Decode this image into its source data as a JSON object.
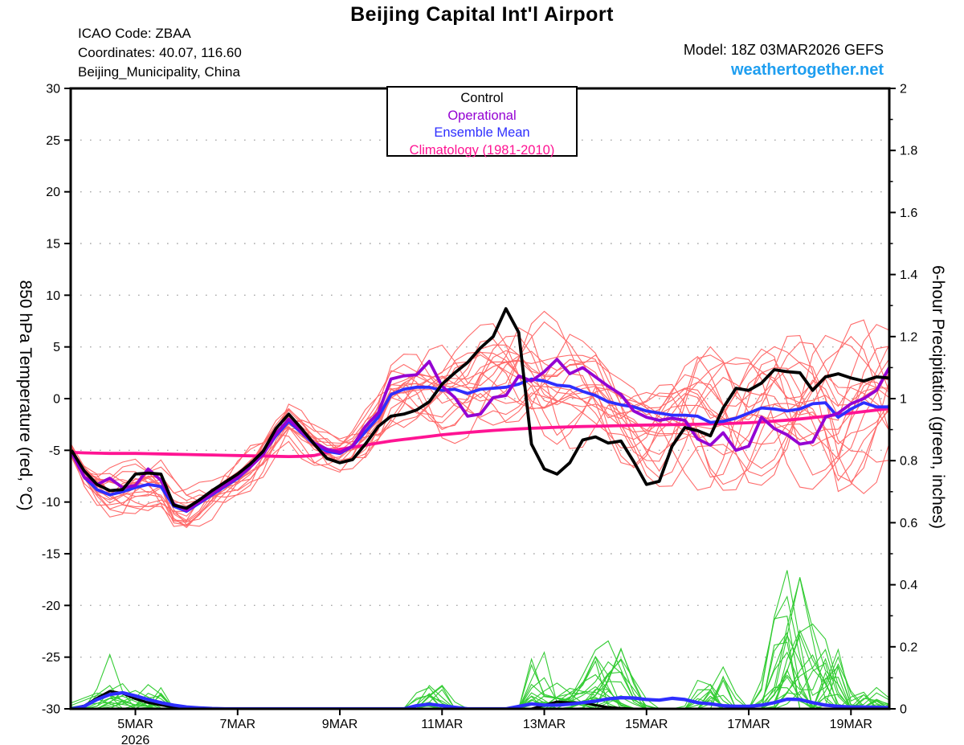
{
  "header": {
    "title": "Beijing Capital Int'l Airport",
    "station": {
      "icao": "ICAO Code: ZBAA",
      "coordinates": "Coordinates: 40.07, 116.60",
      "location": "Beijing_Municipality, China"
    },
    "model": "Model: 18Z 03MAR2026 GEFS",
    "website": "weathertogether.net",
    "website_color": "#1E9EF0"
  },
  "legend": {
    "entries": [
      {
        "label": "Control",
        "color": "#000000"
      },
      {
        "label": "Operational",
        "color": "#9400D3"
      },
      {
        "label": "Ensemble Mean",
        "color": "#2E2EFF"
      },
      {
        "label": "Climatology (1981-2010)",
        "color": "#FF1493"
      }
    ]
  },
  "chart_data": {
    "type": "line",
    "title": "Beijing Capital Int'l Airport",
    "x_axis": {
      "start_day": 3.75,
      "step_days": 0.25,
      "n_points": 65,
      "range_days": [
        3.75,
        19.75
      ],
      "tick_days": [
        5,
        7,
        9,
        11,
        13,
        15,
        17,
        19
      ],
      "tick_labels": [
        "5MAR",
        "7MAR",
        "9MAR",
        "11MAR",
        "13MAR",
        "15MAR",
        "17MAR",
        "19MAR"
      ],
      "year_label": "2026"
    },
    "y_left": {
      "title": "850 hPa Temperature (red, °C)",
      "min": -30,
      "max": 30,
      "ticks": [
        30,
        25,
        20,
        15,
        10,
        5,
        0,
        -5,
        -10,
        -15,
        -20,
        -25,
        -30
      ],
      "grid": "dotted at every 5 from -25 to 25"
    },
    "y_right": {
      "title": "6-hour Precipitation (green, inches)",
      "min": 0,
      "max": 2,
      "ticks": [
        2,
        1.8,
        1.6,
        1.4,
        1.2,
        1,
        0.8,
        0.6,
        0.4,
        0.2,
        0
      ],
      "tick_labels": [
        "2",
        "1.8",
        "1.6",
        "1.4",
        "1.2",
        "1",
        "0.8",
        "0.6",
        "0.4",
        "0.2",
        "0"
      ],
      "minor_tick_step": 0.1
    },
    "series": {
      "control_temp": {
        "name": "Control",
        "color": "#000000",
        "axis": "left",
        "values": [
          -5.0,
          -7.0,
          -8.3,
          -8.9,
          -8.8,
          -7.3,
          -7.2,
          -7.3,
          -10.3,
          -10.6,
          -9.8,
          -8.9,
          -8.1,
          -7.3,
          -6.3,
          -5.1,
          -2.9,
          -1.5,
          -2.9,
          -4.4,
          -5.8,
          -6.2,
          -5.9,
          -4.4,
          -2.7,
          -1.7,
          -1.5,
          -1.1,
          -0.3,
          1.4,
          2.5,
          3.5,
          4.9,
          6.0,
          8.7,
          6.4,
          -4.4,
          -6.8,
          -7.3,
          -6.2,
          -4.0,
          -3.7,
          -4.3,
          -4.1,
          -6.1,
          -8.3,
          -8.0,
          -4.6,
          -2.8,
          -3.1,
          -3.6,
          -0.9,
          1.0,
          0.8,
          1.5,
          2.8,
          2.6,
          2.5,
          0.8,
          2.1,
          2.4,
          2.0,
          1.7,
          2.1,
          2.0
        ]
      },
      "operational_temp": {
        "name": "Operational",
        "color": "#9400D3",
        "axis": "left",
        "values": [
          -5.2,
          -7.6,
          -8.3,
          -7.7,
          -8.6,
          -8.4,
          -6.8,
          -7.9,
          -10.2,
          -10.8,
          -10.0,
          -9.2,
          -8.4,
          -7.6,
          -6.6,
          -5.4,
          -3.4,
          -2.0,
          -3.2,
          -4.3,
          -4.9,
          -5.2,
          -4.6,
          -2.7,
          -1.4,
          1.9,
          2.2,
          2.3,
          3.6,
          1.2,
          0.1,
          -1.7,
          -1.5,
          0.1,
          0.3,
          2.2,
          1.7,
          2.6,
          3.8,
          2.4,
          3.0,
          2.1,
          1.2,
          0.4,
          -1.2,
          -1.8,
          -2.1,
          -1.9,
          -2.1,
          -3.9,
          -4.5,
          -3.3,
          -5.0,
          -4.6,
          -1.8,
          -2.9,
          -3.5,
          -4.4,
          -4.2,
          -1.8,
          -1.4,
          -0.5,
          0.0,
          0.8,
          3.0
        ]
      },
      "ensemble_mean_temp": {
        "name": "Ensemble Mean",
        "color": "#2E2EFF",
        "axis": "left",
        "values": [
          -5.1,
          -7.6,
          -8.8,
          -9.3,
          -9.0,
          -8.6,
          -8.3,
          -8.5,
          -10.4,
          -10.9,
          -10.1,
          -9.3,
          -8.5,
          -7.7,
          -6.6,
          -5.3,
          -3.6,
          -2.2,
          -3.3,
          -4.4,
          -5.1,
          -5.3,
          -4.6,
          -3.2,
          -1.8,
          0.4,
          0.9,
          1.1,
          1.1,
          0.8,
          0.9,
          0.5,
          0.9,
          1.0,
          1.1,
          1.4,
          1.9,
          1.7,
          1.3,
          1.2,
          0.7,
          0.3,
          -0.3,
          -0.6,
          -0.8,
          -1.2,
          -1.4,
          -1.6,
          -1.6,
          -1.7,
          -2.3,
          -2.2,
          -1.9,
          -1.4,
          -0.9,
          -1.0,
          -1.2,
          -1.0,
          -0.5,
          -0.4,
          -1.8,
          -1.0,
          -0.4,
          -0.8,
          -0.8
        ]
      },
      "climatology_temp": {
        "name": "Climatology (1981-2010)",
        "color": "#FF1493",
        "axis": "left",
        "values": [
          -5.2,
          -5.25,
          -5.28,
          -5.3,
          -5.3,
          -5.3,
          -5.32,
          -5.35,
          -5.38,
          -5.4,
          -5.43,
          -5.45,
          -5.48,
          -5.5,
          -5.53,
          -5.55,
          -5.58,
          -5.6,
          -5.58,
          -5.5,
          -5.2,
          -4.9,
          -4.7,
          -4.5,
          -4.3,
          -4.1,
          -3.95,
          -3.8,
          -3.65,
          -3.5,
          -3.38,
          -3.27,
          -3.17,
          -3.08,
          -3.0,
          -2.93,
          -2.87,
          -2.82,
          -2.77,
          -2.73,
          -2.7,
          -2.67,
          -2.64,
          -2.61,
          -2.58,
          -2.56,
          -2.54,
          -2.52,
          -2.5,
          -2.48,
          -2.45,
          -2.42,
          -2.38,
          -2.33,
          -2.26,
          -2.18,
          -2.08,
          -1.97,
          -1.84,
          -1.7,
          -1.55,
          -1.4,
          -1.25,
          -1.1,
          -0.95
        ]
      },
      "control_precip": {
        "name": "Control precipitation",
        "color": "#000000",
        "axis": "right",
        "values": [
          0,
          0.01,
          0.035,
          0.057,
          0.05,
          0.032,
          0.02,
          0.012,
          0.006,
          0.003,
          0.001,
          0,
          0,
          0,
          0,
          0,
          0,
          0,
          0,
          0,
          0,
          0,
          0,
          0,
          0,
          0,
          0,
          0,
          0,
          0,
          0,
          0,
          0,
          0,
          0,
          0,
          0,
          0.012,
          0.023,
          0.02,
          0.02,
          0.012,
          0.005,
          0.002,
          0,
          0,
          0,
          0,
          0,
          0,
          0,
          0,
          0,
          0,
          0,
          0,
          0,
          0,
          0,
          0,
          0,
          0,
          0,
          0,
          0
        ]
      },
      "ensemble_mean_precip": {
        "name": "Ensemble mean precipitation",
        "color": "#2E2EFF",
        "axis": "right",
        "values": [
          0,
          0.008,
          0.03,
          0.046,
          0.052,
          0.042,
          0.03,
          0.02,
          0.012,
          0.006,
          0.003,
          0.001,
          0,
          0,
          0,
          0,
          0,
          0,
          0,
          0,
          0,
          0,
          0,
          0,
          0,
          0,
          0,
          0.01,
          0.015,
          0.01,
          0.005,
          0,
          0,
          0,
          0,
          0.008,
          0.016,
          0.012,
          0.012,
          0.015,
          0.02,
          0.025,
          0.032,
          0.036,
          0.035,
          0.03,
          0.028,
          0.034,
          0.03,
          0.02,
          0.016,
          0.01,
          0.008,
          0.008,
          0.012,
          0.02,
          0.031,
          0.03,
          0.02,
          0.012,
          0.008,
          0.006,
          0.006,
          0.005,
          0.004
        ]
      }
    },
    "ensemble": {
      "red_member_count": 20,
      "red_color": "#FF6A6A",
      "temp_spread_anchors": [
        [
          3.75,
          0.4
        ],
        [
          4.5,
          1.8
        ],
        [
          5,
          2.2
        ],
        [
          6,
          2.0
        ],
        [
          7,
          1.6
        ],
        [
          8,
          1.4
        ],
        [
          9,
          1.7
        ],
        [
          10,
          2.6
        ],
        [
          11,
          3.6
        ],
        [
          12,
          4.2
        ],
        [
          13,
          5.0
        ],
        [
          14,
          5.0
        ],
        [
          15,
          4.6
        ],
        [
          16,
          5.5
        ],
        [
          17,
          6.2
        ],
        [
          18,
          6.8
        ],
        [
          19,
          6.2
        ],
        [
          19.75,
          6.8
        ]
      ],
      "green_member_count": 20,
      "green_color": "#33CC33",
      "precip_events": [
        {
          "center": 4.7,
          "width": 0.9,
          "max": 0.18
        },
        {
          "center": 5.5,
          "width": 0.4,
          "max": 0.09
        },
        {
          "center": 10.75,
          "width": 0.5,
          "max": 0.11
        },
        {
          "center": 12.8,
          "width": 0.35,
          "max": 0.25
        },
        {
          "center": 13.6,
          "width": 0.8,
          "max": 0.12
        },
        {
          "center": 14.2,
          "width": 0.7,
          "max": 0.31
        },
        {
          "center": 16.3,
          "width": 0.45,
          "max": 0.18
        },
        {
          "center": 17.9,
          "width": 0.6,
          "max": 0.49
        },
        {
          "center": 18.5,
          "width": 0.5,
          "max": 0.23
        },
        {
          "center": 19.4,
          "width": 0.5,
          "max": 0.08
        }
      ]
    },
    "grid": {
      "color": "#A8A8A8",
      "style": "dotted",
      "legend_position": "top-center-inside"
    }
  }
}
